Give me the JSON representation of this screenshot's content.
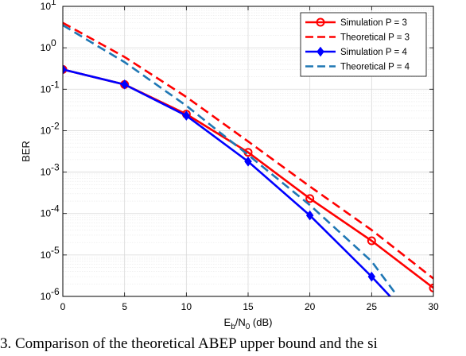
{
  "caption": "3.  Comparison of the theoretical ABEP upper bound and the si",
  "chart_data": {
    "type": "line",
    "xlabel": "E_b/N_0 (dB)",
    "ylabel": "BER",
    "xlim": [
      0,
      30
    ],
    "ylim": [
      1e-06,
      10
    ],
    "yscale": "log",
    "xticks": [
      0,
      5,
      10,
      15,
      20,
      25,
      30
    ],
    "yticks": [
      1e-06,
      1e-05,
      0.0001,
      0.001,
      0.01,
      0.1,
      1,
      10
    ],
    "grid": true,
    "legend_position": "top-right",
    "series": [
      {
        "name": "Simulation P = 3",
        "color": "#ff0000",
        "style": "solid",
        "marker": "circle",
        "x": [
          0,
          5,
          10,
          15,
          20,
          25,
          30
        ],
        "y": [
          0.3,
          0.13,
          0.025,
          0.003,
          0.00023,
          2.2e-05,
          1.6e-06
        ]
      },
      {
        "name": "Theoretical P = 3",
        "color": "#ff0000",
        "style": "dashed",
        "marker": "none",
        "x": [
          0,
          5,
          10,
          15,
          20,
          25,
          30
        ],
        "y": [
          4.0,
          0.6,
          0.065,
          0.0055,
          0.00045,
          4e-05,
          2.7e-06
        ]
      },
      {
        "name": "Simulation P = 4",
        "color": "#0000ff",
        "style": "solid",
        "marker": "diamond",
        "x": [
          0,
          5,
          10,
          15,
          20,
          25,
          26.5
        ],
        "y": [
          0.3,
          0.13,
          0.023,
          0.0018,
          9e-05,
          3e-06,
          1e-06
        ]
      },
      {
        "name": "Theoretical P = 4",
        "color": "#1f77b4",
        "style": "dashed",
        "marker": "none",
        "x": [
          0,
          5,
          10,
          15,
          20,
          25,
          27
        ],
        "y": [
          3.5,
          0.45,
          0.04,
          0.0026,
          0.00016,
          7e-06,
          1.1e-06
        ]
      }
    ]
  }
}
